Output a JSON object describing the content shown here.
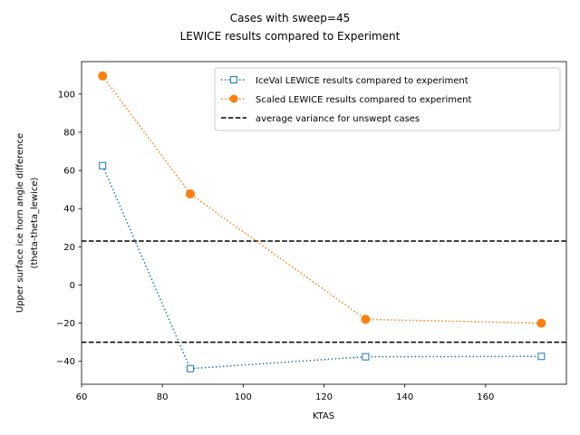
{
  "chart_data": {
    "type": "line",
    "title": "Cases with sweep=45",
    "subtitle": "LEWICE results compared to Experiment",
    "xlabel": "KTAS",
    "ylabel": "Upper surface ice horn angle difference",
    "ylabel2": "(theta-theta_lewice)",
    "xlim": [
      60,
      180
    ],
    "ylim": [
      -52,
      117
    ],
    "xticks": [
      60,
      80,
      100,
      120,
      140,
      160
    ],
    "yticks": [
      -40,
      -20,
      0,
      20,
      40,
      60,
      80,
      100
    ],
    "grid": false,
    "legend_position": "top-right",
    "series": [
      {
        "name": "IceVal LEWICE results compared to experiment",
        "color": "#1f77b4",
        "marker": "square-open",
        "linestyle": "dotted",
        "x": [
          65.2,
          86.9,
          130.3,
          173.8
        ],
        "y": [
          62.5,
          -43.8,
          -37.6,
          -37.4
        ]
      },
      {
        "name": "Scaled LEWICE results compared to experiment",
        "color": "#ff7f0e",
        "marker": "circle-filled",
        "linestyle": "dotted",
        "x": [
          65.2,
          86.9,
          130.3,
          173.8
        ],
        "y": [
          109.5,
          47.7,
          -18.0,
          -20.0
        ]
      }
    ],
    "reference_lines": [
      {
        "name": "average variance for unswept cases",
        "y": 23.0,
        "color": "#000000",
        "linestyle": "dashed"
      },
      {
        "name": "average variance for unswept cases",
        "y": -30.0,
        "color": "#000000",
        "linestyle": "dashed"
      }
    ]
  }
}
